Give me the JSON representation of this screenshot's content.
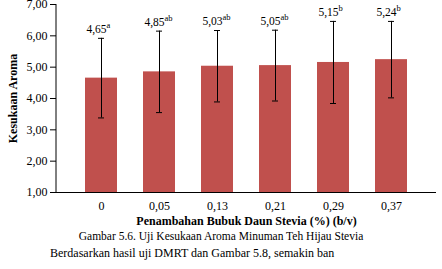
{
  "chart_data": {
    "type": "bar",
    "xlabel": "Penambahan Bubuk Daun Stevia (%) (b/v)",
    "ylabel": "Kesukaan Aroma",
    "categories": [
      "0",
      "0,05",
      "0,13",
      "0,21",
      "0,29",
      "0,37"
    ],
    "values": [
      4.65,
      4.85,
      5.03,
      5.05,
      5.15,
      5.24
    ],
    "value_labels": [
      "4,65",
      "4,85",
      "5,03",
      "5,05",
      "5,15",
      "5,24"
    ],
    "significance": [
      "a",
      "ab",
      "ab",
      "ab",
      "b",
      "b"
    ],
    "error": [
      1.27,
      1.3,
      1.14,
      1.13,
      1.31,
      1.22
    ],
    "color": "#c0504d",
    "data_labels": true,
    "grid": false,
    "ylim": [
      1,
      7
    ],
    "yticks": [
      {
        "value": 1,
        "label": "1,00"
      },
      {
        "value": 2,
        "label": "2,00"
      },
      {
        "value": 3,
        "label": "3,00"
      },
      {
        "value": 4,
        "label": "4,00"
      },
      {
        "value": 5,
        "label": "5,00"
      },
      {
        "value": 6,
        "label": "6,00"
      },
      {
        "value": 7,
        "label": "7,00"
      }
    ],
    "caption": "Gambar 5.6. Uji Kesukaan Aroma Minuman Teh Hijau Stevia",
    "body_text": "Berdasarkan hasil uji DMRT dan Gambar 5.8, semakin ban"
  }
}
